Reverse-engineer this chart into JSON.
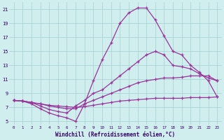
{
  "xlabel": "Windchill (Refroidissement éolien,°C)",
  "background_color": "#d0eeee",
  "grid_color": "#aad4d4",
  "line_color": "#993399",
  "xlim": [
    -0.5,
    23.5
  ],
  "ylim": [
    4.5,
    22
  ],
  "xticks": [
    0,
    1,
    2,
    3,
    4,
    5,
    6,
    7,
    8,
    9,
    10,
    11,
    12,
    13,
    14,
    15,
    16,
    17,
    18,
    19,
    20,
    21,
    22,
    23
  ],
  "yticks": [
    5,
    7,
    9,
    11,
    13,
    15,
    17,
    19,
    21
  ],
  "series": [
    [
      8.0,
      7.9,
      7.7,
      7.5,
      7.3,
      7.2,
      7.1,
      7.0,
      7.1,
      7.3,
      7.5,
      7.7,
      7.9,
      8.0,
      8.1,
      8.2,
      8.3,
      8.3,
      8.3,
      8.3,
      8.4,
      8.4,
      8.4,
      8.5
    ],
    [
      8.0,
      7.9,
      7.7,
      7.5,
      7.2,
      7.0,
      6.8,
      6.8,
      7.5,
      8.0,
      8.5,
      9.0,
      9.5,
      10.0,
      10.5,
      10.8,
      11.0,
      11.2,
      11.2,
      11.3,
      11.5,
      11.5,
      11.5,
      10.8
    ],
    [
      8.0,
      7.9,
      7.7,
      7.2,
      6.7,
      6.4,
      6.2,
      7.2,
      8.0,
      9.0,
      9.5,
      10.5,
      11.5,
      12.5,
      13.5,
      14.5,
      15.0,
      14.5,
      13.0,
      12.8,
      12.5,
      11.8,
      11.2,
      10.8
    ],
    [
      8.0,
      7.9,
      7.5,
      6.8,
      6.2,
      5.8,
      5.5,
      5.0,
      7.5,
      10.8,
      13.8,
      16.2,
      19.0,
      20.5,
      21.2,
      21.2,
      19.5,
      17.2,
      15.0,
      14.5,
      13.0,
      12.0,
      10.8,
      8.5
    ]
  ]
}
